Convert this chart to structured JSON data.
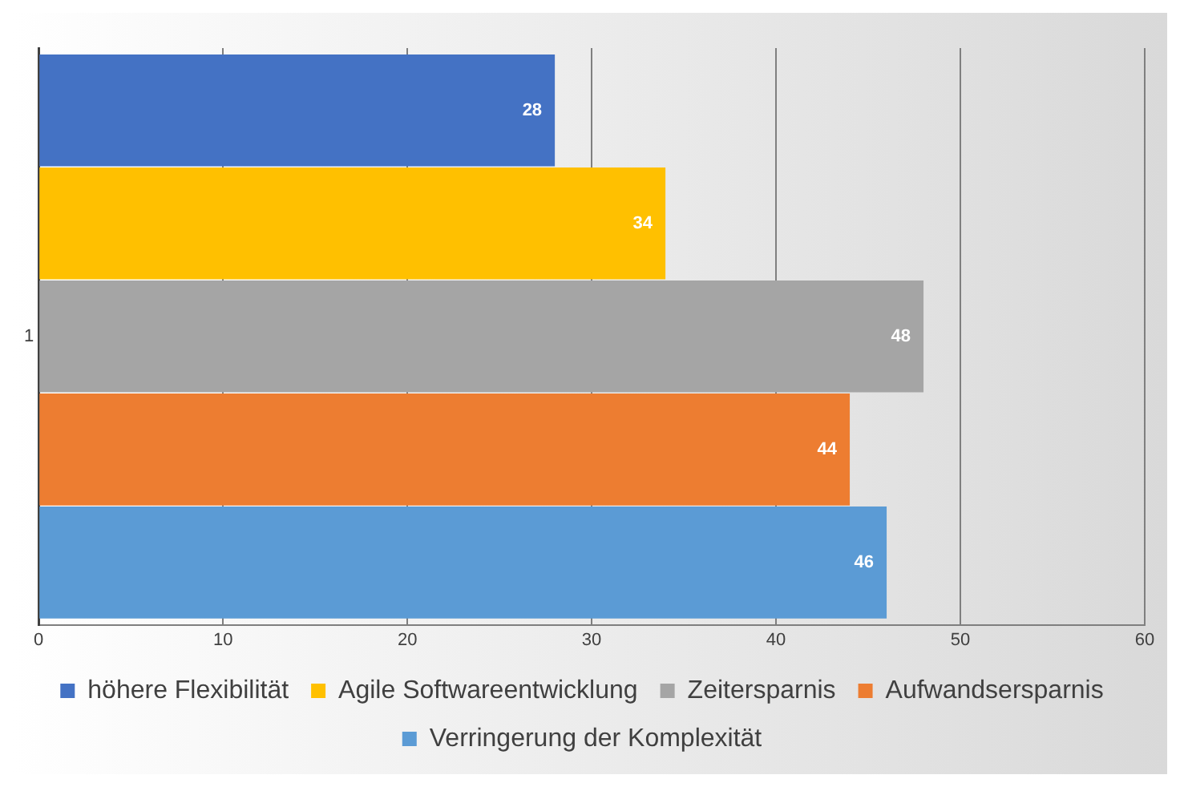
{
  "chart_data": {
    "type": "bar",
    "orientation": "horizontal",
    "categories": [
      "1"
    ],
    "series": [
      {
        "name": "höhere Flexibilität",
        "color": "#4472c4",
        "values": [
          28
        ]
      },
      {
        "name": "Agile Softwareentwicklung",
        "color": "#ffc000",
        "values": [
          34
        ]
      },
      {
        "name": "Zeitersparnis",
        "color": "#a5a5a5",
        "values": [
          48
        ]
      },
      {
        "name": "Aufwandsersparnis",
        "color": "#ed7d31",
        "values": [
          44
        ]
      },
      {
        "name": "Verringerung der Komplexität",
        "color": "#5b9bd5",
        "values": [
          46
        ]
      }
    ],
    "xlim": [
      0,
      60
    ],
    "xticks": [
      0,
      10,
      20,
      30,
      40,
      50,
      60
    ],
    "grid": "x",
    "legend": "bottom",
    "data_labels": true
  }
}
